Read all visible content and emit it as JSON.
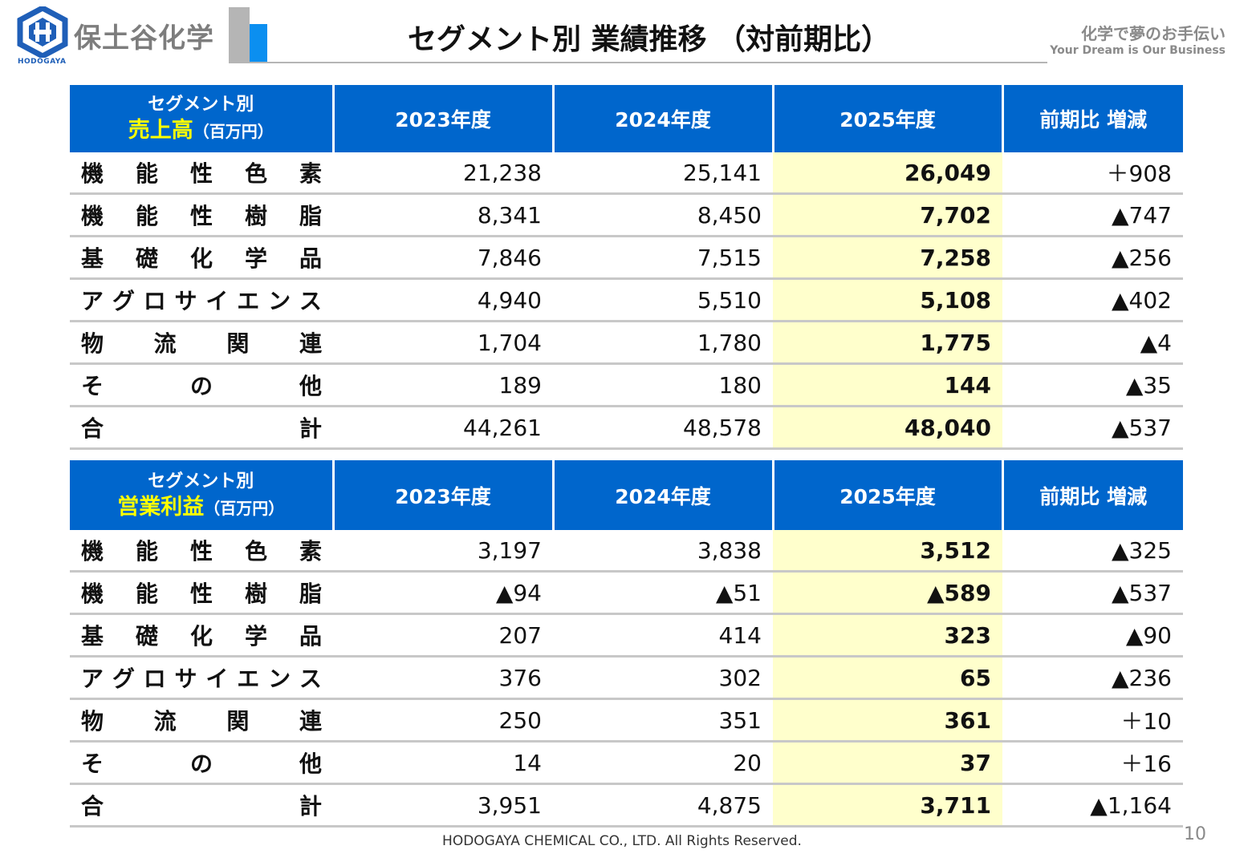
{
  "header": {
    "logo_text": "保土谷化学",
    "logo_sub": "HODOGAYA",
    "title": "セグメント別 業績推移 （対前期比）",
    "tagline_ja": "化学で夢のお手伝い",
    "tagline_en": "Your Dream is Our Business"
  },
  "sales_table": {
    "header": {
      "top": "セグメント別",
      "main": "売上高",
      "unit": "（百万円）",
      "cols": [
        "2023年度",
        "2024年度",
        "2025年度",
        "前期比 増減"
      ]
    },
    "rows": [
      {
        "label": [
          "機",
          "能",
          "性",
          "色",
          "素"
        ],
        "v2023": "21,238",
        "v2024": "25,141",
        "v2025": "26,049",
        "diff": "＋908"
      },
      {
        "label": [
          "機",
          "能",
          "性",
          "樹",
          "脂"
        ],
        "v2023": "8,341",
        "v2024": "8,450",
        "v2025": "7,702",
        "diff": "▲747"
      },
      {
        "label": [
          "基",
          "礎",
          "化",
          "学",
          "品"
        ],
        "v2023": "7,846",
        "v2024": "7,515",
        "v2025": "7,258",
        "diff": "▲256"
      },
      {
        "label": [
          "ア",
          "グ",
          "ロ",
          "サ",
          "イ",
          "エ",
          "ン",
          "ス"
        ],
        "v2023": "4,940",
        "v2024": "5,510",
        "v2025": "5,108",
        "diff": "▲402"
      },
      {
        "label": [
          "物",
          "流",
          "関",
          "連"
        ],
        "v2023": "1,704",
        "v2024": "1,780",
        "v2025": "1,775",
        "diff": "▲4"
      },
      {
        "label": [
          "そ",
          "の",
          "他"
        ],
        "v2023": "189",
        "v2024": "180",
        "v2025": "144",
        "diff": "▲35"
      },
      {
        "label": [
          "合",
          "計"
        ],
        "v2023": "44,261",
        "v2024": "48,578",
        "v2025": "48,040",
        "diff": "▲537"
      }
    ]
  },
  "profit_table": {
    "header": {
      "top": "セグメント別",
      "main": "営業利益",
      "unit": "（百万円）",
      "cols": [
        "2023年度",
        "2024年度",
        "2025年度",
        "前期比 増減"
      ]
    },
    "rows": [
      {
        "label": [
          "機",
          "能",
          "性",
          "色",
          "素"
        ],
        "v2023": "3,197",
        "v2024": "3,838",
        "v2025": "3,512",
        "diff": "▲325"
      },
      {
        "label": [
          "機",
          "能",
          "性",
          "樹",
          "脂"
        ],
        "v2023": "▲94",
        "v2024": "▲51",
        "v2025": "▲589",
        "diff": "▲537"
      },
      {
        "label": [
          "基",
          "礎",
          "化",
          "学",
          "品"
        ],
        "v2023": "207",
        "v2024": "414",
        "v2025": "323",
        "diff": "▲90"
      },
      {
        "label": [
          "ア",
          "グ",
          "ロ",
          "サ",
          "イ",
          "エ",
          "ン",
          "ス"
        ],
        "v2023": "376",
        "v2024": "302",
        "v2025": "65",
        "diff": "▲236"
      },
      {
        "label": [
          "物",
          "流",
          "関",
          "連"
        ],
        "v2023": "250",
        "v2024": "351",
        "v2025": "361",
        "diff": "＋10"
      },
      {
        "label": [
          "そ",
          "の",
          "他"
        ],
        "v2023": "14",
        "v2024": "20",
        "v2025": "37",
        "diff": "＋16"
      },
      {
        "label": [
          "合",
          "計"
        ],
        "v2023": "3,951",
        "v2024": "4,875",
        "v2025": "3,711",
        "diff": "▲1,164"
      }
    ]
  },
  "footer": {
    "copyright": "HODOGAYA CHEMICAL CO., LTD. All Rights Reserved.",
    "page_number": "10"
  },
  "colors": {
    "header_blue": "#0066cc",
    "highlight_yellow": "#ffffcc",
    "header_accent_text": "#ffff00"
  }
}
